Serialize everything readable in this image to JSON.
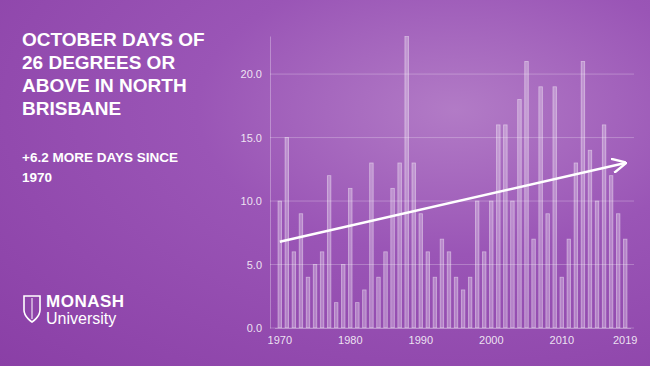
{
  "chart_data": {
    "type": "bar",
    "title": "OCTOBER DAYS OF 26 DEGREES OR ABOVE IN NORTH BRISBANE",
    "subtitle": "+6.2 MORE DAYS SINCE 1970",
    "logo_text": [
      "MONASH",
      "University"
    ],
    "categories": [
      "1970",
      null,
      null,
      null,
      null,
      null,
      null,
      null,
      null,
      null,
      "1980",
      null,
      null,
      null,
      null,
      null,
      null,
      null,
      null,
      null,
      "1990",
      null,
      null,
      null,
      null,
      null,
      null,
      null,
      null,
      null,
      "2000",
      null,
      null,
      null,
      null,
      null,
      null,
      null,
      null,
      null,
      "2010",
      null,
      null,
      null,
      null,
      null,
      null,
      null,
      null,
      "2019"
    ],
    "values": [
      10,
      15,
      6,
      9,
      4,
      5,
      6,
      12,
      2,
      5,
      11,
      2,
      3,
      13,
      4,
      6,
      11,
      13,
      23,
      13,
      9,
      6,
      4,
      7,
      6,
      4,
      3,
      4,
      10,
      6,
      10,
      16,
      16,
      10,
      18,
      21,
      7,
      19,
      9,
      19,
      4,
      7,
      13,
      21,
      14,
      10,
      16,
      12,
      9,
      7
    ],
    "color": "#ffffff",
    "trend": [
      6.8,
      13.0
    ],
    "ylim": [
      0,
      23
    ],
    "yticks": [
      {
        "value": 0,
        "label": "0.0"
      },
      {
        "value": 5,
        "label": "5.0"
      },
      {
        "value": 10,
        "label": "10.0"
      },
      {
        "value": 15,
        "label": "15.0"
      },
      {
        "value": 20,
        "label": "20.0"
      }
    ],
    "grid": true
  }
}
